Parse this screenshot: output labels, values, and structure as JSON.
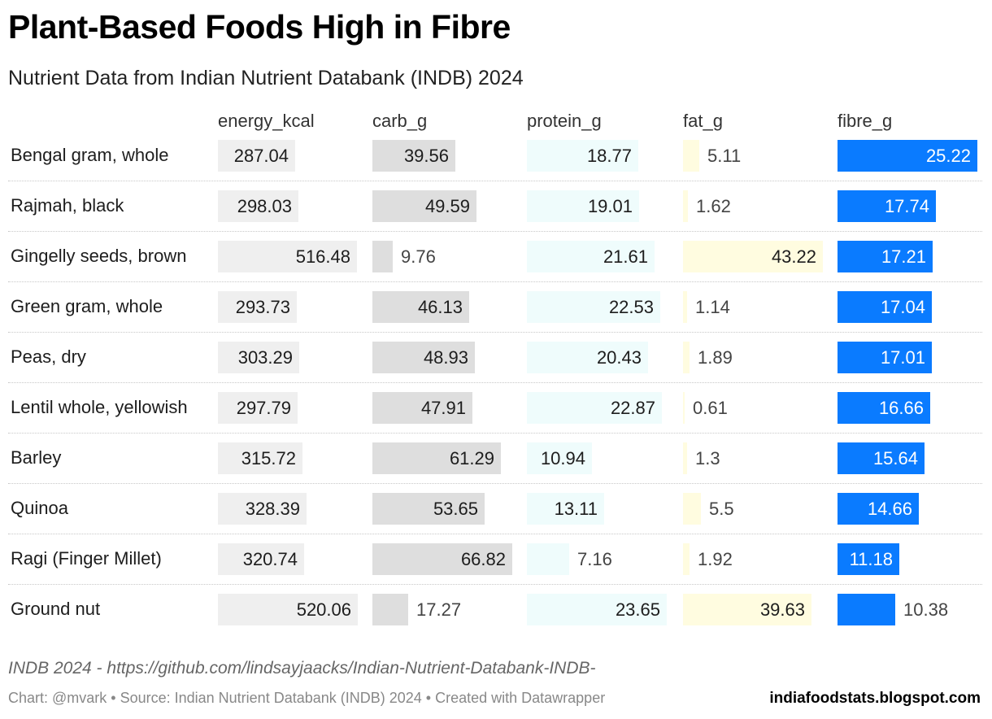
{
  "title": "Plant-Based Foods High in Fibre",
  "subtitle": "Nutrient Data from Indian Nutrient Databank (INDB) 2024",
  "source_line": "INDB 2024 - https://github.com/lindsayjaacks/Indian-Nutrient-Databank-INDB-",
  "credits_line": "Chart: @mvark • Source: Indian Nutrient Databank (INDB) 2024 • Created with Datawrapper",
  "blog": "indiafoodstats.blogspot.com",
  "chart_data": {
    "type": "table",
    "columns": [
      {
        "key": "energy_kcal",
        "label": "energy_kcal",
        "color": "#efefef",
        "text_color": "#1d1d1d",
        "max": 520.06
      },
      {
        "key": "carb_g",
        "label": "carb_g",
        "color": "#dedede",
        "text_color": "#1d1d1d",
        "max": 66.82
      },
      {
        "key": "protein_g",
        "label": "protein_g",
        "color": "#effcfc",
        "text_color": "#1d1d1d",
        "max": 23.65
      },
      {
        "key": "fat_g",
        "label": "fat_g",
        "color": "#fffce0",
        "text_color": "#1d1d1d",
        "max": 43.22
      },
      {
        "key": "fibre_g",
        "label": "fibre_g",
        "color": "#0a7bff",
        "text_color": "#ffffff",
        "max": 25.22
      }
    ],
    "rows": [
      {
        "name": "Bengal gram, whole",
        "energy_kcal": "287.04",
        "carb_g": "39.56",
        "protein_g": "18.77",
        "fat_g": "5.11",
        "fibre_g": "25.22"
      },
      {
        "name": "Rajmah, black",
        "energy_kcal": "298.03",
        "carb_g": "49.59",
        "protein_g": "19.01",
        "fat_g": "1.62",
        "fibre_g": "17.74"
      },
      {
        "name": "Gingelly seeds, brown",
        "energy_kcal": "516.48",
        "carb_g": "9.76",
        "protein_g": "21.61",
        "fat_g": "43.22",
        "fibre_g": "17.21"
      },
      {
        "name": "Green gram, whole",
        "energy_kcal": "293.73",
        "carb_g": "46.13",
        "protein_g": "22.53",
        "fat_g": "1.14",
        "fibre_g": "17.04"
      },
      {
        "name": "Peas, dry",
        "energy_kcal": "303.29",
        "carb_g": "48.93",
        "protein_g": "20.43",
        "fat_g": "1.89",
        "fibre_g": "17.01"
      },
      {
        "name": "Lentil whole, yellowish",
        "energy_kcal": "297.79",
        "carb_g": "47.91",
        "protein_g": "22.87",
        "fat_g": "0.61",
        "fibre_g": "16.66"
      },
      {
        "name": "Barley",
        "energy_kcal": "315.72",
        "carb_g": "61.29",
        "protein_g": "10.94",
        "fat_g": "1.3",
        "fibre_g": "15.64"
      },
      {
        "name": "Quinoa",
        "energy_kcal": "328.39",
        "carb_g": "53.65",
        "protein_g": "13.11",
        "fat_g": "5.5",
        "fibre_g": "14.66"
      },
      {
        "name": "Ragi (Finger Millet)",
        "energy_kcal": "320.74",
        "carb_g": "66.82",
        "protein_g": "7.16",
        "fat_g": "1.92",
        "fibre_g": "11.18"
      },
      {
        "name": "Ground nut",
        "energy_kcal": "520.06",
        "carb_g": "17.27",
        "protein_g": "23.65",
        "fat_g": "39.63",
        "fibre_g": "10.38"
      }
    ]
  }
}
